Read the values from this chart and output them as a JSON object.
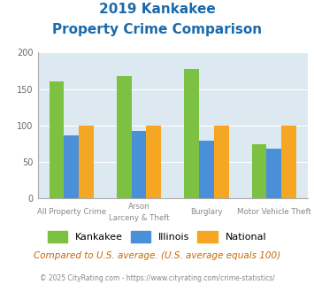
{
  "title_line1": "2019 Kankakee",
  "title_line2": "Property Crime Comparison",
  "kankakee": [
    160,
    168,
    178,
    74
  ],
  "illinois": [
    87,
    93,
    79,
    68
  ],
  "national": [
    100,
    100,
    100,
    100
  ],
  "kankakee_color": "#7dc142",
  "illinois_color": "#4a90d9",
  "national_color": "#f5a623",
  "bg_color": "#dce9f0",
  "title_color": "#1a6aad",
  "xlabel_color": "#888888",
  "footnote_color": "#cc6600",
  "copyright_color": "#888888",
  "copyright_link_color": "#4a90d9",
  "ylim": [
    0,
    200
  ],
  "yticks": [
    0,
    50,
    100,
    150,
    200
  ],
  "top_labels": [
    "All Property Crime",
    "Arson",
    "Burglary",
    "Motor Vehicle Theft"
  ],
  "bottom_labels": [
    "",
    "Larceny & Theft",
    "",
    ""
  ],
  "footnote": "Compared to U.S. average. (U.S. average equals 100)",
  "copyright_text": "© 2025 CityRating.com - ",
  "copyright_link": "https://www.cityrating.com/crime-statistics/",
  "legend_labels": [
    "Kankakee",
    "Illinois",
    "National"
  ]
}
